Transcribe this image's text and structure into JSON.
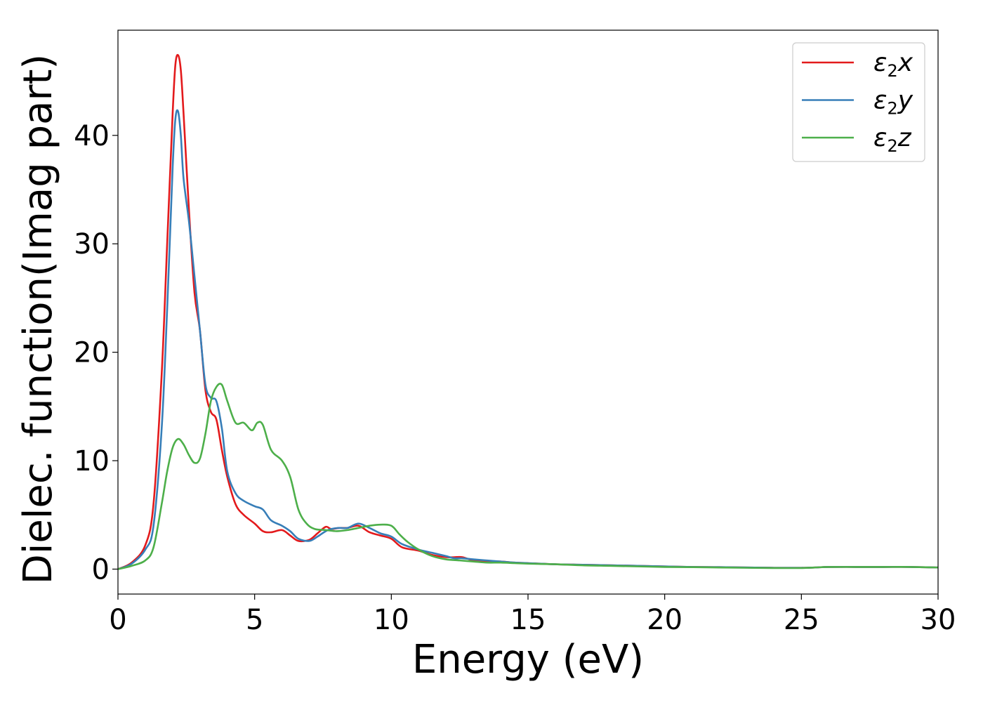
{
  "chart_data": {
    "type": "line",
    "xlabel": "Energy (eV)",
    "ylabel": "Dielec. function(Imag part)",
    "xlim": [
      0,
      30
    ],
    "ylim": [
      -2.3,
      49.7
    ],
    "xticks": [
      0,
      5,
      10,
      15,
      20,
      25,
      30
    ],
    "yticks": [
      0,
      10,
      20,
      30,
      40
    ],
    "grid": false,
    "legend_position": "top-right",
    "series": [
      {
        "name": "x",
        "legend_prefix": "ε",
        "legend_sub": "2",
        "color": "#e31a1c",
        "x": [
          0,
          0.5,
          1.0,
          1.3,
          1.6,
          1.8,
          2.0,
          2.1,
          2.2,
          2.3,
          2.4,
          2.6,
          2.8,
          3.0,
          3.2,
          3.4,
          3.6,
          3.8,
          4.0,
          4.3,
          4.6,
          5.0,
          5.3,
          5.6,
          6.0,
          6.3,
          6.6,
          7.0,
          7.3,
          7.6,
          7.8,
          8.1,
          8.4,
          8.8,
          9.2,
          9.6,
          10.0,
          10.4,
          11.0,
          11.5,
          12.0,
          12.3,
          12.6,
          13.0,
          13.5,
          14.0,
          14.5,
          15.0,
          16.0,
          17.0,
          18.0,
          19.0,
          20.0,
          21.0,
          22.0,
          23.0,
          24.0,
          25.0,
          25.5,
          26.0,
          27.0,
          28.0,
          29.0,
          30.0
        ],
        "values": [
          0,
          0.6,
          2.2,
          6.0,
          18.0,
          30.0,
          42.0,
          46.5,
          47.4,
          46.0,
          42.0,
          33.0,
          25.5,
          22.0,
          16.5,
          14.5,
          13.8,
          11.0,
          8.5,
          6.0,
          5.0,
          4.2,
          3.5,
          3.4,
          3.6,
          3.1,
          2.6,
          2.7,
          3.3,
          3.9,
          3.7,
          3.8,
          3.8,
          4.0,
          3.4,
          3.1,
          2.8,
          2.0,
          1.7,
          1.3,
          1.1,
          1.1,
          1.1,
          0.8,
          0.7,
          0.7,
          0.6,
          0.55,
          0.45,
          0.4,
          0.35,
          0.3,
          0.25,
          0.2,
          0.18,
          0.15,
          0.12,
          0.12,
          0.15,
          0.2,
          0.2,
          0.2,
          0.2,
          0.15
        ]
      },
      {
        "name": "y",
        "legend_prefix": "ε",
        "legend_sub": "2",
        "color": "#377eb8",
        "x": [
          0,
          0.5,
          1.0,
          1.3,
          1.6,
          1.8,
          2.0,
          2.1,
          2.2,
          2.3,
          2.4,
          2.6,
          2.8,
          3.0,
          3.2,
          3.4,
          3.6,
          3.8,
          4.0,
          4.3,
          4.6,
          5.0,
          5.3,
          5.6,
          6.0,
          6.3,
          6.6,
          7.0,
          7.3,
          7.6,
          7.8,
          8.1,
          8.4,
          8.8,
          9.2,
          9.6,
          10.0,
          10.4,
          11.0,
          11.5,
          12.0,
          12.3,
          12.6,
          13.0,
          13.5,
          14.0,
          14.5,
          15.0,
          16.0,
          17.0,
          18.0,
          19.0,
          20.0,
          21.0,
          22.0,
          23.0,
          24.0,
          25.0,
          25.5,
          26.0,
          27.0,
          28.0,
          29.0,
          30.0
        ],
        "values": [
          0,
          0.5,
          1.8,
          4.0,
          13.0,
          24.0,
          37.0,
          41.5,
          42.2,
          40.0,
          36.0,
          32.0,
          27.0,
          22.0,
          17.0,
          15.8,
          15.5,
          13.0,
          9.0,
          7.0,
          6.3,
          5.8,
          5.5,
          4.5,
          4.0,
          3.5,
          2.8,
          2.6,
          3.0,
          3.5,
          3.7,
          3.8,
          3.8,
          4.2,
          3.8,
          3.3,
          3.0,
          2.3,
          1.8,
          1.5,
          1.2,
          1.0,
          1.0,
          0.9,
          0.8,
          0.7,
          0.6,
          0.55,
          0.45,
          0.4,
          0.35,
          0.3,
          0.25,
          0.2,
          0.18,
          0.15,
          0.12,
          0.12,
          0.15,
          0.2,
          0.2,
          0.2,
          0.2,
          0.15
        ]
      },
      {
        "name": "z",
        "legend_prefix": "ε",
        "legend_sub": "2",
        "color": "#4daf4a",
        "x": [
          0,
          0.5,
          1.0,
          1.3,
          1.6,
          1.8,
          2.0,
          2.2,
          2.4,
          2.6,
          2.8,
          3.0,
          3.2,
          3.4,
          3.6,
          3.8,
          4.0,
          4.3,
          4.6,
          4.9,
          5.1,
          5.3,
          5.6,
          6.0,
          6.3,
          6.6,
          6.9,
          7.2,
          7.6,
          8.0,
          8.4,
          8.8,
          9.2,
          9.6,
          10.0,
          10.3,
          10.6,
          11.0,
          11.5,
          12.0,
          12.5,
          13.0,
          13.5,
          14.0,
          14.5,
          15.0,
          16.0,
          17.0,
          18.0,
          19.0,
          20.0,
          21.0,
          22.0,
          23.0,
          24.0,
          25.0,
          25.5,
          26.0,
          27.0,
          28.0,
          29.0,
          30.0
        ],
        "values": [
          0,
          0.3,
          0.8,
          2.0,
          6.0,
          9.0,
          11.2,
          12.0,
          11.5,
          10.5,
          9.8,
          10.2,
          12.5,
          15.5,
          16.8,
          17.0,
          15.5,
          13.5,
          13.5,
          12.8,
          13.5,
          13.3,
          11.0,
          10.0,
          8.5,
          5.5,
          4.2,
          3.7,
          3.6,
          3.5,
          3.6,
          3.8,
          4.0,
          4.1,
          4.0,
          3.2,
          2.5,
          1.8,
          1.2,
          0.9,
          0.8,
          0.7,
          0.6,
          0.6,
          0.55,
          0.5,
          0.45,
          0.35,
          0.3,
          0.25,
          0.2,
          0.18,
          0.15,
          0.12,
          0.1,
          0.1,
          0.15,
          0.2,
          0.2,
          0.2,
          0.2,
          0.15
        ]
      }
    ]
  }
}
